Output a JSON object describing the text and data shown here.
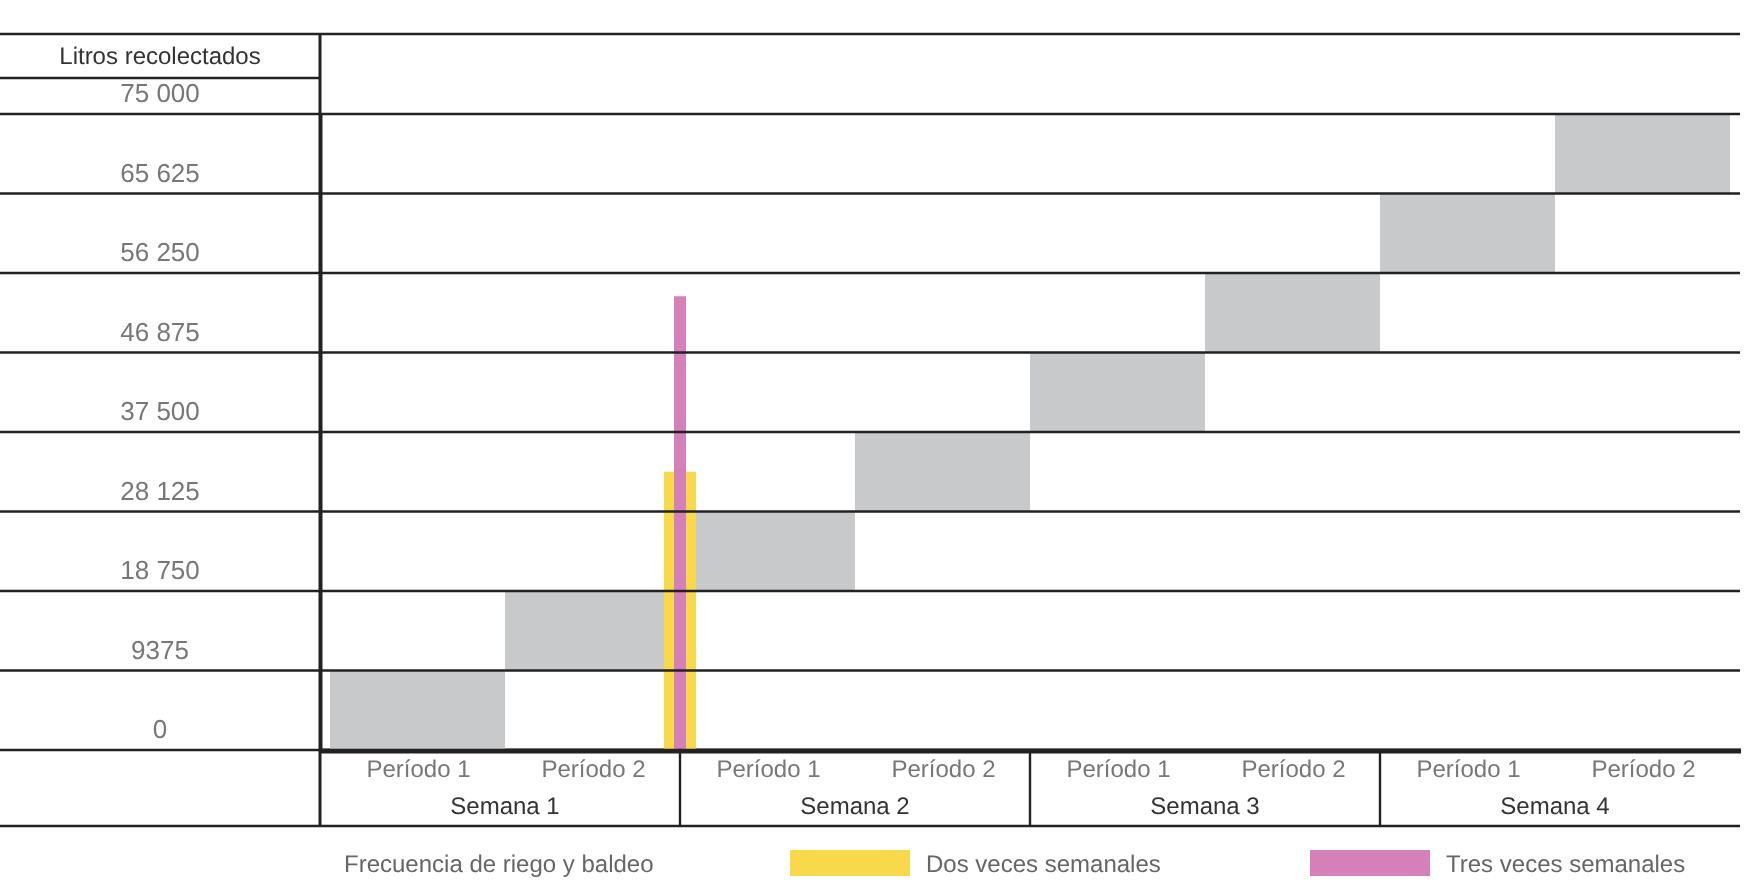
{
  "chart_data": {
    "type": "bar",
    "ylabel": "Litros recolectados",
    "categories": [
      "Período 1",
      "Período 2",
      "Período 1",
      "Período 2",
      "Período 1",
      "Período 2",
      "Período 1",
      "Período 2"
    ],
    "series": [
      {
        "color": "#c8c9cb",
        "base": [
          0,
          9375,
          18750,
          28125,
          37500,
          46875,
          56250,
          65625
        ],
        "values": [
          9375,
          9375,
          9375,
          9375,
          9375,
          9375,
          9375,
          9375
        ]
      },
      {
        "name": "Dos veces semanales",
        "color": "#f8d94c",
        "values": [
          null,
          32800,
          null,
          null,
          null,
          null,
          null,
          null
        ]
      },
      {
        "name": "Tres veces semanales",
        "color": "#d680b9",
        "values": [
          null,
          53500,
          null,
          null,
          null,
          null,
          null,
          null
        ]
      }
    ],
    "ylim": [
      0,
      75000
    ],
    "yticks": [
      0,
      9375,
      {
        "value": 18750,
        "label": "18 750"
      },
      {
        "value": 28125,
        "label": "28 125"
      },
      {
        "value": 37500,
        "label": "37 500"
      },
      {
        "value": 46875,
        "label": "46 875"
      },
      {
        "value": 56250,
        "label": "56 250"
      },
      {
        "value": 65625,
        "label": "65 625"
      },
      {
        "value": 75000,
        "label": "75 000"
      }
    ],
    "grid": "y",
    "legend": "bottom",
    "annotations": [
      "Semana 1",
      "Semana 2",
      "Semana 3",
      "Semana 4",
      "Frecuencia de riego y baldeo"
    ]
  }
}
